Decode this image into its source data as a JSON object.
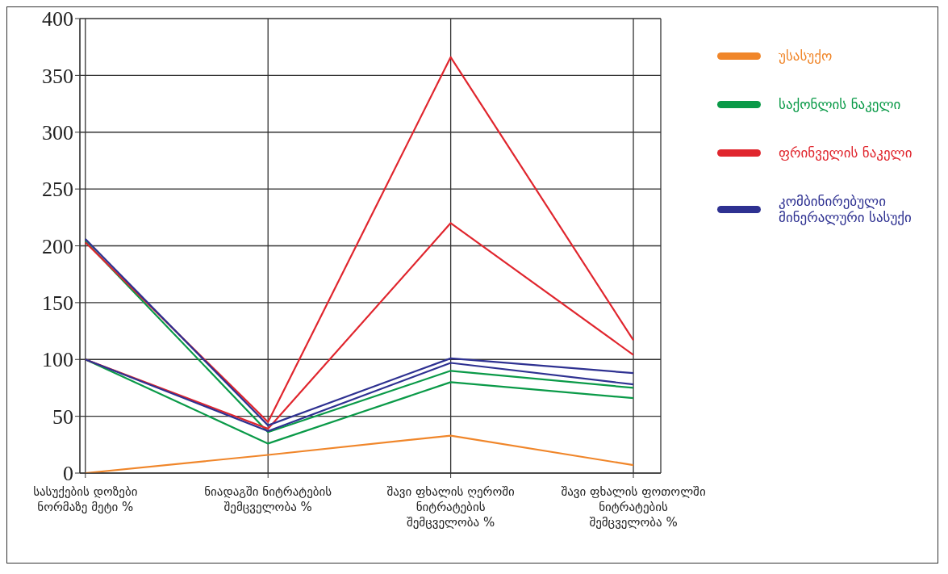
{
  "chart_data": {
    "type": "line",
    "categories": [
      "სასუქების დოზები ნორმაზე მეტი %",
      "ნიადაგში ნიტრატების შემცველობა %",
      "შავი ფხალის ღეროში ნიტრატების შემცველობა %",
      "შავი ფხალის ფოთოლში ნიტრატების შემცველობა %"
    ],
    "series": [
      {
        "name": "უსასუქო",
        "color": "#f0862a",
        "values": [
          0,
          16,
          33,
          7
        ]
      },
      {
        "name": "საქონლის ნაკელი",
        "color": "#0a9a48",
        "values": [
          204,
          36,
          90,
          75
        ]
      },
      {
        "color": "#0a9a48",
        "values": [
          100,
          26,
          80,
          66
        ]
      },
      {
        "name": "ფრინველის ნაკელი",
        "color": "#e0262e",
        "values": [
          203,
          45,
          366,
          117
        ]
      },
      {
        "color": "#e0262e",
        "values": [
          100,
          39,
          220,
          104
        ]
      },
      {
        "name": "კომბინირებული მინერალური სასუქი",
        "color": "#2e3191",
        "values": [
          206,
          42,
          101,
          88
        ]
      },
      {
        "color": "#2e3191",
        "values": [
          100,
          37,
          97,
          78
        ]
      }
    ],
    "ylim": [
      0,
      400
    ],
    "yticks": [
      0,
      50,
      100,
      150,
      200,
      250,
      300,
      350,
      400
    ],
    "grid": true,
    "legend": "right",
    "marker": "none",
    "line_style": "solid"
  }
}
